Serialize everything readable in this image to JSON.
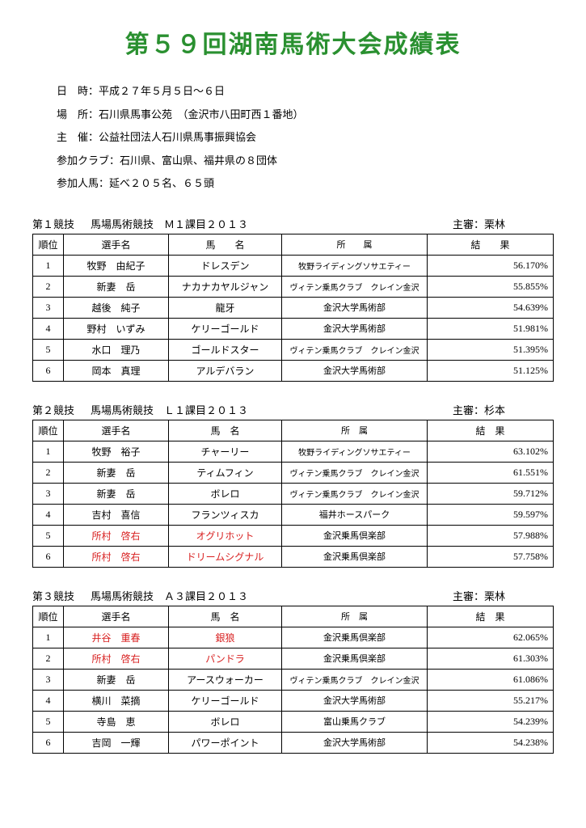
{
  "title": "第５９回湖南馬術大会成績表",
  "meta": {
    "date": "日　時：平成２７年５月５日～６日",
    "place": "場　所：石川県馬事公苑　（金沢市八田町西１番地）",
    "host": "主　催：公益社団法人石川県馬事振興協会",
    "clubs": "参加クラブ：石川県、富山県、福井県の８団体",
    "participants": "参加人馬：延べ２０５名、６５頭"
  },
  "columns": {
    "rank": "順位",
    "player": "選手名",
    "horse": "馬　名",
    "horse_sp": "馬　　名",
    "org": "所　属",
    "org_sp": "所　　属",
    "result": "結　果",
    "result_sp": "結　　果"
  },
  "events": [
    {
      "label": "第１競技",
      "title": "馬場馬術競技　Ｍ１課目２０１３",
      "judge": "主審：栗林",
      "wide_headers": true,
      "rows": [
        {
          "rank": "1",
          "player": "牧野　由紀子",
          "horse": "ドレスデン",
          "org": "牧野ライディングソサエティー",
          "orgSmall": true,
          "result": "56.170%"
        },
        {
          "rank": "2",
          "player": "新妻　岳",
          "horse": "ナカナカヤルジャン",
          "org": "ヴィテン乗馬クラブ　クレイン金沢",
          "orgSmall": true,
          "result": "55.855%"
        },
        {
          "rank": "3",
          "player": "越後　純子",
          "horse": "龍牙",
          "org": "金沢大学馬術部",
          "result": "54.639%"
        },
        {
          "rank": "4",
          "player": "野村　いずみ",
          "horse": "ケリーゴールド",
          "org": "金沢大学馬術部",
          "result": "51.981%"
        },
        {
          "rank": "5",
          "player": "水口　理乃",
          "horse": "ゴールドスター",
          "org": "ヴィテン乗馬クラブ　クレイン金沢",
          "orgSmall": true,
          "result": "51.395%"
        },
        {
          "rank": "6",
          "player": "岡本　真理",
          "horse": "アルデバラン",
          "org": "金沢大学馬術部",
          "result": "51.125%"
        }
      ]
    },
    {
      "label": "第２競技",
      "title": "馬場馬術競技　Ｌ１課目２０１３",
      "judge": "主審：杉本",
      "wide_headers": false,
      "rows": [
        {
          "rank": "1",
          "player": "牧野　裕子",
          "horse": "チャーリー",
          "org": "牧野ライディングソサエティー",
          "orgSmall": true,
          "result": "63.102%"
        },
        {
          "rank": "2",
          "player": "新妻　岳",
          "horse": "ティムフィン",
          "org": "ヴィテン乗馬クラブ　クレイン金沢",
          "orgSmall": true,
          "result": "61.551%"
        },
        {
          "rank": "3",
          "player": "新妻　岳",
          "horse": "ボレロ",
          "org": "ヴィテン乗馬クラブ　クレイン金沢",
          "orgSmall": true,
          "result": "59.712%"
        },
        {
          "rank": "4",
          "player": "吉村　喜信",
          "horse": "フランツィスカ",
          "org": "福井ホースパーク",
          "result": "59.597%"
        },
        {
          "rank": "5",
          "player": "所村　啓右",
          "playerRed": true,
          "horse": "オグリホット",
          "horseRed": true,
          "org": "金沢乗馬倶楽部",
          "result": "57.988%"
        },
        {
          "rank": "6",
          "player": "所村　啓右",
          "playerRed": true,
          "horse": "ドリームシグナル",
          "horseRed": true,
          "org": "金沢乗馬倶楽部",
          "result": "57.758%"
        }
      ]
    },
    {
      "label": "第３競技",
      "title": "馬場馬術競技　Ａ３課目２０１３",
      "judge": "主審：栗林",
      "wide_headers": false,
      "rows": [
        {
          "rank": "1",
          "player": "井谷　重春",
          "playerRed": true,
          "horse": "銀狼",
          "horseRed": true,
          "org": "金沢乗馬倶楽部",
          "result": "62.065%"
        },
        {
          "rank": "2",
          "player": "所村　啓右",
          "playerRed": true,
          "horse": "パンドラ",
          "horseRed": true,
          "org": "金沢乗馬倶楽部",
          "result": "61.303%"
        },
        {
          "rank": "3",
          "player": "新妻　岳",
          "horse": "アースウォーカー",
          "org": "ヴィテン乗馬クラブ　クレイン金沢",
          "orgSmall": true,
          "result": "61.086%"
        },
        {
          "rank": "4",
          "player": "横川　菜摘",
          "horse": "ケリーゴールド",
          "org": "金沢大学馬術部",
          "result": "55.217%"
        },
        {
          "rank": "5",
          "player": "寺島　恵",
          "horse": "ボレロ",
          "org": "富山乗馬クラブ",
          "result": "54.239%"
        },
        {
          "rank": "6",
          "player": "吉岡　一輝",
          "horse": "パワーポイント",
          "org": "金沢大学馬術部",
          "result": "54.238%"
        }
      ]
    }
  ]
}
